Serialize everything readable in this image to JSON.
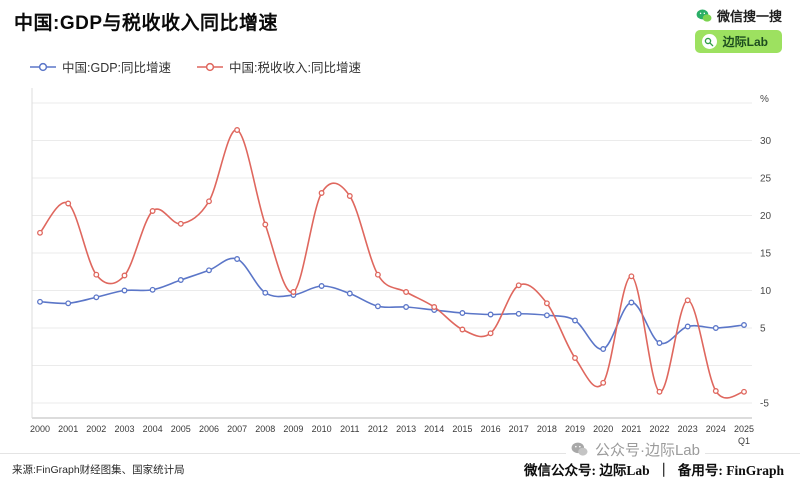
{
  "page": {
    "title": "中国:GDP与税收收入同比增速"
  },
  "wechat_search": {
    "brand": "微信搜一搜",
    "pill": "边际Lab"
  },
  "chart_data": {
    "type": "line",
    "x": [
      "2000",
      "2001",
      "2002",
      "2003",
      "2004",
      "2005",
      "2006",
      "2007",
      "2008",
      "2009",
      "2010",
      "2011",
      "2012",
      "2013",
      "2014",
      "2015",
      "2016",
      "2017",
      "2018",
      "2019",
      "2020",
      "2021",
      "2022",
      "2023",
      "2024",
      "2025"
    ],
    "x_last_sub": "Q1",
    "unit": "%",
    "ylim": [
      -7,
      37
    ],
    "yticks": [
      30,
      25,
      20,
      15,
      10,
      5,
      -5
    ],
    "gridlines": [
      35,
      30,
      25,
      20,
      15,
      10,
      5,
      0,
      -5
    ],
    "grid": true,
    "legend_position": "top-left",
    "series": [
      {
        "name": "中国:GDP:同比增速",
        "color": "#5b76c8",
        "values": [
          8.5,
          8.3,
          9.1,
          10.0,
          10.1,
          11.4,
          12.7,
          14.2,
          9.7,
          9.4,
          10.6,
          9.6,
          7.9,
          7.8,
          7.4,
          7.0,
          6.8,
          6.9,
          6.7,
          6.0,
          2.2,
          8.4,
          3.0,
          5.2,
          5.0,
          5.4
        ]
      },
      {
        "name": "中国:税收收入:同比增速",
        "color": "#df675e",
        "values": [
          17.7,
          21.6,
          12.1,
          12.0,
          20.6,
          18.9,
          21.9,
          31.4,
          18.8,
          9.8,
          23.0,
          22.6,
          12.1,
          9.8,
          7.8,
          4.8,
          4.3,
          10.7,
          8.3,
          1.0,
          -2.3,
          11.9,
          -3.5,
          8.7,
          -3.4,
          -3.5
        ]
      }
    ]
  },
  "footer": {
    "source": "来源:FinGraph财经图集、国家统计局",
    "account_label": "微信公众号: 边际Lab",
    "divider": "｜",
    "backup_label": "备用号: FinGraph",
    "watermark": "公众号·边际Lab"
  }
}
